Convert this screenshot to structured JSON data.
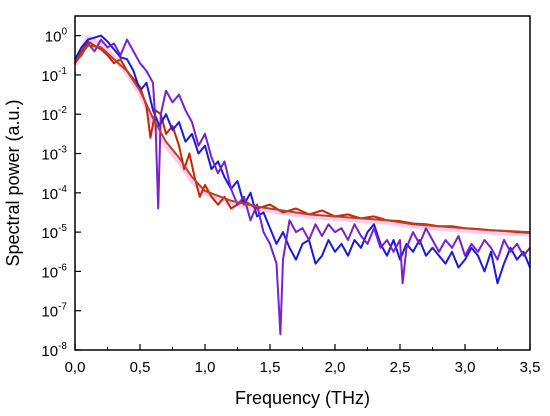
{
  "chart_data": {
    "type": "line",
    "xlabel": "Frequency (THz)",
    "ylabel": "Spectral power (a.u.)",
    "xlim": [
      0.0,
      3.5
    ],
    "ylim_log10": [
      -8,
      0.5
    ],
    "y_scale": "log",
    "x_ticks": [
      {
        "value": 0.0,
        "label": "0,0"
      },
      {
        "value": 0.5,
        "label": "0,5"
      },
      {
        "value": 1.0,
        "label": "1,0"
      },
      {
        "value": 1.5,
        "label": "1,5"
      },
      {
        "value": 2.0,
        "label": "2,0"
      },
      {
        "value": 2.5,
        "label": "2,5"
      },
      {
        "value": 3.0,
        "label": "3,0"
      },
      {
        "value": 3.5,
        "label": "3,5"
      }
    ],
    "y_ticks": [
      {
        "exp": 0,
        "base": "10",
        "sup": "0"
      },
      {
        "exp": -1,
        "base": "10",
        "sup": "-1"
      },
      {
        "exp": -2,
        "base": "10",
        "sup": "-2"
      },
      {
        "exp": -3,
        "base": "10",
        "sup": "-3"
      },
      {
        "exp": -4,
        "base": "10",
        "sup": "-4"
      },
      {
        "exp": -5,
        "base": "10",
        "sup": "-5"
      },
      {
        "exp": -6,
        "base": "10",
        "sup": "-6"
      },
      {
        "exp": -7,
        "base": "10",
        "sup": "-7"
      },
      {
        "exp": -8,
        "base": "10",
        "sup": "-8"
      }
    ],
    "grid": false,
    "legend": "none",
    "series": [
      {
        "color": "#ff8adf",
        "points": [
          [
            0.0,
            -0.75
          ],
          [
            0.1,
            -0.05
          ],
          [
            0.2,
            -0.2
          ],
          [
            0.3,
            -0.55
          ],
          [
            0.4,
            -0.95
          ],
          [
            0.5,
            -1.45
          ],
          [
            0.6,
            -2.2
          ],
          [
            0.7,
            -2.8
          ],
          [
            0.8,
            -3.2
          ],
          [
            0.9,
            -3.7
          ],
          [
            1.0,
            -4.0
          ],
          [
            1.2,
            -4.25
          ],
          [
            1.4,
            -4.4
          ],
          [
            1.6,
            -4.5
          ],
          [
            1.8,
            -4.6
          ],
          [
            2.0,
            -4.65
          ],
          [
            2.2,
            -4.7
          ],
          [
            2.4,
            -4.75
          ],
          [
            2.6,
            -4.85
          ],
          [
            2.8,
            -4.9
          ],
          [
            3.0,
            -4.95
          ],
          [
            3.2,
            -5.0
          ],
          [
            3.5,
            -5.05
          ]
        ]
      },
      {
        "color": "#cc2200",
        "points": [
          [
            0.0,
            -0.7
          ],
          [
            0.05,
            -0.4
          ],
          [
            0.1,
            -0.15
          ],
          [
            0.15,
            -0.25
          ],
          [
            0.2,
            -0.35
          ],
          [
            0.25,
            -0.5
          ],
          [
            0.3,
            -0.7
          ],
          [
            0.35,
            -0.6
          ],
          [
            0.4,
            -0.9
          ],
          [
            0.45,
            -1.1
          ],
          [
            0.5,
            -1.3
          ],
          [
            0.55,
            -1.8
          ],
          [
            0.58,
            -2.6
          ],
          [
            0.62,
            -1.9
          ],
          [
            0.66,
            -2.0
          ],
          [
            0.7,
            -2.5
          ],
          [
            0.75,
            -2.3
          ],
          [
            0.8,
            -2.8
          ],
          [
            0.84,
            -3.4
          ],
          [
            0.88,
            -3.0
          ],
          [
            0.92,
            -3.6
          ],
          [
            0.96,
            -4.1
          ],
          [
            1.0,
            -3.8
          ],
          [
            1.05,
            -4.1
          ],
          [
            1.1,
            -4.3
          ],
          [
            1.15,
            -4.1
          ],
          [
            1.2,
            -4.4
          ],
          [
            1.3,
            -4.2
          ],
          [
            1.4,
            -4.4
          ],
          [
            1.5,
            -4.3
          ],
          [
            1.6,
            -4.5
          ],
          [
            1.7,
            -4.4
          ],
          [
            1.8,
            -4.55
          ],
          [
            1.9,
            -4.45
          ],
          [
            2.0,
            -4.6
          ],
          [
            2.1,
            -4.55
          ],
          [
            2.2,
            -4.65
          ],
          [
            2.3,
            -4.6
          ],
          [
            2.4,
            -4.7
          ],
          [
            2.5,
            -4.72
          ],
          [
            2.6,
            -4.78
          ],
          [
            2.7,
            -4.8
          ],
          [
            2.8,
            -4.85
          ],
          [
            2.9,
            -4.85
          ],
          [
            3.0,
            -4.9
          ],
          [
            3.1,
            -4.92
          ],
          [
            3.2,
            -4.95
          ],
          [
            3.3,
            -4.97
          ],
          [
            3.4,
            -5.0
          ],
          [
            3.5,
            -5.02
          ]
        ]
      },
      {
        "color": "#1a1adf",
        "points": [
          [
            0.0,
            -0.6
          ],
          [
            0.05,
            -0.3
          ],
          [
            0.1,
            -0.1
          ],
          [
            0.15,
            -0.05
          ],
          [
            0.2,
            0.0
          ],
          [
            0.25,
            -0.15
          ],
          [
            0.3,
            -0.35
          ],
          [
            0.35,
            -0.55
          ],
          [
            0.4,
            -0.6
          ],
          [
            0.45,
            -0.9
          ],
          [
            0.5,
            -1.4
          ],
          [
            0.55,
            -1.2
          ],
          [
            0.6,
            -1.9
          ],
          [
            0.65,
            -2.3
          ],
          [
            0.7,
            -2.0
          ],
          [
            0.75,
            -2.4
          ],
          [
            0.8,
            -2.2
          ],
          [
            0.85,
            -2.7
          ],
          [
            0.9,
            -2.5
          ],
          [
            0.95,
            -3.0
          ],
          [
            1.0,
            -2.8
          ],
          [
            1.05,
            -3.4
          ],
          [
            1.1,
            -3.2
          ],
          [
            1.15,
            -3.6
          ],
          [
            1.2,
            -3.9
          ],
          [
            1.25,
            -3.7
          ],
          [
            1.3,
            -4.3
          ],
          [
            1.35,
            -4.0
          ],
          [
            1.4,
            -4.6
          ],
          [
            1.45,
            -4.5
          ],
          [
            1.5,
            -4.9
          ],
          [
            1.55,
            -5.3
          ],
          [
            1.6,
            -5.0
          ],
          [
            1.65,
            -5.4
          ],
          [
            1.7,
            -5.7
          ],
          [
            1.75,
            -5.3
          ],
          [
            1.8,
            -5.2
          ],
          [
            1.85,
            -5.8
          ],
          [
            1.9,
            -5.6
          ],
          [
            1.95,
            -5.2
          ],
          [
            2.0,
            -5.5
          ],
          [
            2.05,
            -5.3
          ],
          [
            2.1,
            -5.6
          ],
          [
            2.15,
            -5.2
          ],
          [
            2.2,
            -5.4
          ],
          [
            2.25,
            -5.0
          ],
          [
            2.3,
            -4.8
          ],
          [
            2.35,
            -5.3
          ],
          [
            2.4,
            -5.6
          ],
          [
            2.45,
            -5.2
          ],
          [
            2.5,
            -5.7
          ],
          [
            2.55,
            -5.3
          ],
          [
            2.6,
            -5.5
          ],
          [
            2.65,
            -5.2
          ],
          [
            2.7,
            -5.6
          ],
          [
            2.75,
            -5.4
          ],
          [
            2.8,
            -5.6
          ],
          [
            2.85,
            -5.8
          ],
          [
            2.9,
            -5.5
          ],
          [
            2.95,
            -5.9
          ],
          [
            3.0,
            -5.7
          ],
          [
            3.05,
            -5.4
          ],
          [
            3.1,
            -5.6
          ],
          [
            3.15,
            -6.0
          ],
          [
            3.2,
            -5.5
          ],
          [
            3.25,
            -6.3
          ],
          [
            3.3,
            -5.8
          ],
          [
            3.35,
            -5.4
          ],
          [
            3.4,
            -5.7
          ],
          [
            3.45,
            -5.5
          ],
          [
            3.5,
            -5.9
          ]
        ]
      },
      {
        "color": "#7722cc",
        "points": [
          [
            0.0,
            -0.65
          ],
          [
            0.05,
            -0.5
          ],
          [
            0.1,
            -0.2
          ],
          [
            0.15,
            -0.4
          ],
          [
            0.2,
            -0.1
          ],
          [
            0.25,
            -0.3
          ],
          [
            0.3,
            -0.2
          ],
          [
            0.35,
            -0.5
          ],
          [
            0.4,
            -0.1
          ],
          [
            0.45,
            -0.4
          ],
          [
            0.5,
            -0.7
          ],
          [
            0.55,
            -0.9
          ],
          [
            0.6,
            -1.2
          ],
          [
            0.62,
            -2.3
          ],
          [
            0.64,
            -4.4
          ],
          [
            0.66,
            -2.0
          ],
          [
            0.7,
            -1.4
          ],
          [
            0.75,
            -1.7
          ],
          [
            0.8,
            -1.5
          ],
          [
            0.85,
            -1.9
          ],
          [
            0.9,
            -2.2
          ],
          [
            0.95,
            -2.8
          ],
          [
            1.0,
            -2.5
          ],
          [
            1.05,
            -3.1
          ],
          [
            1.1,
            -3.5
          ],
          [
            1.15,
            -3.2
          ],
          [
            1.2,
            -3.9
          ],
          [
            1.25,
            -4.3
          ],
          [
            1.3,
            -4.1
          ],
          [
            1.35,
            -4.7
          ],
          [
            1.4,
            -4.3
          ],
          [
            1.45,
            -5.0
          ],
          [
            1.5,
            -5.3
          ],
          [
            1.55,
            -5.8
          ],
          [
            1.58,
            -7.6
          ],
          [
            1.6,
            -5.7
          ],
          [
            1.65,
            -4.7
          ],
          [
            1.7,
            -5.0
          ],
          [
            1.75,
            -4.9
          ],
          [
            1.8,
            -5.2
          ],
          [
            1.85,
            -4.8
          ],
          [
            1.9,
            -5.1
          ],
          [
            1.95,
            -4.8
          ],
          [
            2.0,
            -5.0
          ],
          [
            2.05,
            -4.9
          ],
          [
            2.1,
            -5.2
          ],
          [
            2.15,
            -4.8
          ],
          [
            2.2,
            -5.1
          ],
          [
            2.25,
            -5.3
          ],
          [
            2.3,
            -4.9
          ],
          [
            2.35,
            -5.4
          ],
          [
            2.4,
            -5.2
          ],
          [
            2.45,
            -5.5
          ],
          [
            2.5,
            -5.2
          ],
          [
            2.52,
            -6.3
          ],
          [
            2.55,
            -5.4
          ],
          [
            2.6,
            -5.0
          ],
          [
            2.65,
            -5.3
          ],
          [
            2.7,
            -4.9
          ],
          [
            2.75,
            -5.2
          ],
          [
            2.8,
            -5.5
          ],
          [
            2.85,
            -5.2
          ],
          [
            2.9,
            -5.4
          ],
          [
            2.95,
            -5.1
          ],
          [
            3.0,
            -5.6
          ],
          [
            3.05,
            -5.3
          ],
          [
            3.1,
            -5.5
          ],
          [
            3.15,
            -5.2
          ],
          [
            3.2,
            -5.4
          ],
          [
            3.25,
            -5.7
          ],
          [
            3.3,
            -5.2
          ],
          [
            3.35,
            -5.5
          ],
          [
            3.4,
            -5.3
          ],
          [
            3.45,
            -5.6
          ],
          [
            3.5,
            -5.4
          ]
        ]
      },
      {
        "color": "#b5451b",
        "points": [
          [
            0.0,
            -0.7
          ],
          [
            0.1,
            -0.25
          ],
          [
            0.2,
            -0.3
          ],
          [
            0.3,
            -0.6
          ],
          [
            0.4,
            -0.9
          ],
          [
            0.5,
            -1.4
          ],
          [
            0.6,
            -2.1
          ],
          [
            0.7,
            -2.7
          ],
          [
            0.8,
            -3.1
          ],
          [
            0.9,
            -3.6
          ],
          [
            1.0,
            -3.95
          ],
          [
            1.2,
            -4.2
          ],
          [
            1.4,
            -4.35
          ],
          [
            1.6,
            -4.45
          ],
          [
            1.8,
            -4.55
          ],
          [
            2.0,
            -4.6
          ],
          [
            2.2,
            -4.65
          ],
          [
            2.4,
            -4.7
          ],
          [
            2.6,
            -4.8
          ],
          [
            2.8,
            -4.85
          ],
          [
            3.0,
            -4.9
          ],
          [
            3.2,
            -4.95
          ],
          [
            3.5,
            -5.0
          ]
        ]
      }
    ]
  }
}
